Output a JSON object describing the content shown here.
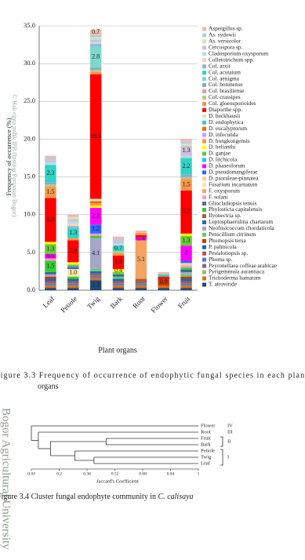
{
  "chart_data": [
    {
      "type": "bar",
      "stacked": true,
      "y_label": "Frequency of occurrence (%)",
      "x_label": "Plant organs",
      "categories": [
        "Leaf",
        "Petiole",
        "Twig",
        "Bark",
        "Root",
        "Flower",
        "Fruit"
      ],
      "ylim": [
        0,
        35
      ],
      "yticks": [
        {
          "value": 0,
          "label": "0.0"
        },
        {
          "value": 5,
          "label": "5.0"
        },
        {
          "value": 10,
          "label": "10.0"
        },
        {
          "value": 15,
          "label": "15.0"
        },
        {
          "value": 20,
          "label": "20.0"
        },
        {
          "value": 25,
          "label": "25.0"
        },
        {
          "value": 30,
          "label": "30.0"
        },
        {
          "value": 35,
          "label": "35.0"
        }
      ],
      "grid": true,
      "series": [
        {
          "name": "Aspergillus sp.",
          "color": "#f2b8a8",
          "values": [
            0.3,
            0.3,
            0.7,
            0.3,
            0.3,
            0.3,
            0.3
          ]
        },
        {
          "name": "As. sydowii",
          "color": "#b8cce4",
          "values": [
            0.3,
            0,
            0.3,
            0.3,
            0,
            0,
            0.3
          ]
        },
        {
          "name": "As. versicolor",
          "color": "#d7e4bc",
          "values": [
            0,
            0.3,
            0.3,
            0,
            0,
            0,
            0.3
          ]
        },
        {
          "name": "Cercospora sp.",
          "color": "#ccc0da",
          "values": [
            0.3,
            0.3,
            0.3,
            0.3,
            0,
            0,
            1.3
          ]
        },
        {
          "name": "Cladosporium oxysporum",
          "color": "#b7dee8",
          "values": [
            0.3,
            0.3,
            0.3,
            0.3,
            0,
            0,
            0.3
          ]
        },
        {
          "name": "Colletotrichum spp.",
          "color": "#fcd5b4",
          "values": [
            0,
            0.3,
            0,
            0,
            0,
            0,
            0
          ]
        },
        {
          "name": "Col. arxii",
          "color": "#95b3d7",
          "values": [
            0,
            0.3,
            0.3,
            0,
            0,
            0,
            0
          ]
        },
        {
          "name": "Col. acutatum",
          "color": "#2ed3c6",
          "values": [
            2.3,
            1.3,
            0,
            0.7,
            0,
            0.3,
            2.2
          ]
        },
        {
          "name": "Col. aenigma",
          "color": "#7fd8c8",
          "values": [
            0,
            0,
            2.8,
            0,
            0,
            0,
            0
          ]
        },
        {
          "name": "Col. boninense",
          "color": "#8fa8c8",
          "values": [
            0.3,
            0,
            0.3,
            0,
            0,
            0,
            0.3
          ]
        },
        {
          "name": "Col. brasiliense",
          "color": "#e6a0a0",
          "values": [
            0,
            0,
            0,
            0,
            0,
            0,
            0
          ]
        },
        {
          "name": "Col. crassipes",
          "color": "#b3c98a",
          "values": [
            0.3,
            0,
            0.3,
            0.3,
            0,
            0,
            0.3
          ]
        },
        {
          "name": "Col. gloeosporioides",
          "color": "#f79646",
          "values": [
            1.5,
            0.3,
            0.3,
            0.3,
            0.3,
            0,
            1.5
          ]
        },
        {
          "name": "Diaporthe spp.",
          "color": "#ff0000",
          "values": [
            5.8,
            2.9,
            16.5,
            1.8,
            0.3,
            0.3,
            5.7
          ]
        },
        {
          "name": "D. beckhausii",
          "color": "#d8e8c8",
          "values": [
            0,
            0,
            0.3,
            0,
            0,
            0,
            0
          ]
        },
        {
          "name": "D. endophytica",
          "color": "#33cccc",
          "values": [
            0,
            0,
            0,
            0,
            0,
            0,
            0
          ]
        },
        {
          "name": "D. eucalyptorum",
          "color": "#ff6600",
          "values": [
            0,
            0,
            0.3,
            0,
            0,
            0,
            0
          ]
        },
        {
          "name": "D. infecunda",
          "color": "#cc99ff",
          "values": [
            0,
            0,
            0,
            0,
            0,
            0,
            0
          ]
        },
        {
          "name": "D. hongkongensis",
          "color": "#ff9933",
          "values": [
            0,
            0,
            0.3,
            0,
            0,
            0,
            0
          ]
        },
        {
          "name": "D. helianthi",
          "color": "#ffff00",
          "values": [
            0.3,
            0.3,
            0.3,
            0.4,
            0,
            0,
            0.3
          ]
        },
        {
          "name": "D. ganjae",
          "color": "#66cc33",
          "values": [
            1.3,
            0.3,
            0,
            0.3,
            0,
            0,
            1.3
          ]
        },
        {
          "name": "D. litchicola",
          "color": "#00ccff",
          "values": [
            0,
            0,
            0,
            0,
            0,
            0,
            0
          ]
        },
        {
          "name": "D. phaseolorum",
          "color": "#ff00ff",
          "values": [
            0.6,
            0,
            2.2,
            0,
            0.4,
            0,
            2
          ]
        },
        {
          "name": "D. pseudomangiferae",
          "color": "#3366ff",
          "values": [
            0,
            0.3,
            1.2,
            0,
            0,
            0,
            0.3
          ]
        },
        {
          "name": "D. psoraleae-pinnatea",
          "color": "#ffcc99",
          "values": [
            0,
            0,
            0,
            0,
            0,
            0,
            0.3
          ]
        },
        {
          "name": "Fusarium incarnatum",
          "color": "#ffe699",
          "values": [
            0,
            1.0,
            0,
            0,
            0,
            0,
            0
          ],
          "value_labels": [
            null,
            "1.0",
            null,
            null,
            null,
            null,
            null
          ]
        },
        {
          "name": "F. oxysporum",
          "color": "#f4a460",
          "values": [
            0,
            0,
            0,
            0,
            5.1,
            0,
            0
          ]
        },
        {
          "name": "F. solani",
          "color": "#ff99cc",
          "values": [
            0.3,
            0,
            0.3,
            0,
            0,
            0,
            0.3
          ]
        },
        {
          "name": "Gliocladiopsis tenuis",
          "color": "#666699",
          "values": [
            0,
            0,
            0,
            0,
            0,
            0,
            0
          ]
        },
        {
          "name": "Phylosticta capitalensis",
          "color": "#33cc33",
          "values": [
            1.5,
            0.3,
            0.3,
            0,
            0,
            0,
            0.3
          ]
        },
        {
          "name": "Ilyonectria sp.",
          "color": "#996633",
          "values": [
            0,
            0,
            0,
            0,
            0.3,
            0,
            0
          ]
        },
        {
          "name": "Leptosphaerulina chartarum",
          "color": "#336699",
          "values": [
            0.3,
            0,
            0,
            0.3,
            0,
            0,
            0.3
          ]
        },
        {
          "name": "Neofusicoccum chordaticola",
          "color": "#a6a6c8",
          "values": [
            0.3,
            0,
            4.1,
            0,
            0,
            0,
            0.3
          ]
        },
        {
          "name": "Penicillium citrinum",
          "color": "#66cc66",
          "values": [
            0,
            0,
            0.3,
            0.3,
            0,
            0,
            0.3
          ]
        },
        {
          "name": "Phomopsis tersa",
          "color": "#cc3300",
          "values": [
            0.3,
            0,
            0,
            0,
            0,
            0.9,
            0.3
          ]
        },
        {
          "name": "P. palmicola",
          "color": "#0070c0",
          "values": [
            0.3,
            0.3,
            0.3,
            0.3,
            0,
            0,
            0.3
          ]
        },
        {
          "name": "Pestalotiopsis sp.",
          "color": "#c0504d",
          "values": [
            0.3,
            0.3,
            0.3,
            0.3,
            0.3,
            0,
            0.3
          ]
        },
        {
          "name": "Phoma sp.",
          "color": "#4f81bd",
          "values": [
            0.3,
            0.3,
            0.3,
            0.3,
            0.3,
            0,
            0.3
          ]
        },
        {
          "name": "Peyronellaea coffeae arabicae",
          "color": "#8064a2",
          "values": [
            0,
            0,
            0,
            0,
            0,
            0,
            0
          ]
        },
        {
          "name": "Pyrigemmula aurantiaca",
          "color": "#9bbb59",
          "values": [
            0,
            0,
            0,
            0,
            0,
            0,
            0
          ]
        },
        {
          "name": "Trichoderma hamatum",
          "color": "#e46c0a",
          "values": [
            0.3,
            0.3,
            0.3,
            0.3,
            0.3,
            0.3,
            0.3
          ]
        },
        {
          "name": "T. atroviride",
          "color": "#1f497d",
          "values": [
            0.3,
            0.3,
            1.3,
            0.3,
            0.3,
            0.3,
            0.3
          ]
        }
      ]
    },
    {
      "type": "dendrogram",
      "x_label": "Jaccard's Coefficient",
      "xlim": [
        0.04,
        1
      ],
      "xticks": [
        0.04,
        0.2,
        0.36,
        0.52,
        0.68,
        0.84,
        1
      ],
      "leaves": [
        "Flower",
        "Root",
        "Fruit",
        "Bark",
        "Petiole",
        "Twig",
        "Leaf"
      ],
      "merges": [
        {
          "members": [
            "Twig",
            "Leaf"
          ],
          "similarity": 0.4
        },
        {
          "members": [
            "Petiole",
            "Twig",
            "Leaf"
          ],
          "similarity": 0.29
        },
        {
          "members": [
            "Fruit",
            "Bark"
          ],
          "similarity": 0.47
        },
        {
          "members": [
            "Fruit",
            "Bark",
            "Petiole",
            "Twig",
            "Leaf"
          ],
          "similarity": 0.15
        },
        {
          "members": [
            "Root",
            "Fruit",
            "Bark",
            "Petiole",
            "Twig",
            "Leaf"
          ],
          "similarity": 0.08
        },
        {
          "members": [
            "Flower",
            "Root",
            "Fruit",
            "Bark",
            "Petiole",
            "Twig",
            "Leaf"
          ],
          "similarity": 0.04
        }
      ],
      "groups": [
        {
          "label": "IV",
          "members": [
            "Flower"
          ]
        },
        {
          "label": "III",
          "members": [
            "Root"
          ]
        },
        {
          "label": "II",
          "members": [
            "Fruit",
            "Bark"
          ]
        },
        {
          "label": "I",
          "members": [
            "Petiole",
            "Twig",
            "Leaf"
          ]
        }
      ]
    }
  ],
  "captions": {
    "figure_3_3": [
      "Figure 3.3 Frequency of occurrence of endophytic fungal species in each plant",
      "organs"
    ],
    "figure_3_4": {
      "text": "Figure 3.4 Cluster fungal endophyte community in",
      "species": "C. calisaya"
    }
  },
  "watermark": {
    "copyright": "© Hak cipta milik IPB (Institut Pertanian Bogor)",
    "university": "Bogor Agricultural University"
  }
}
